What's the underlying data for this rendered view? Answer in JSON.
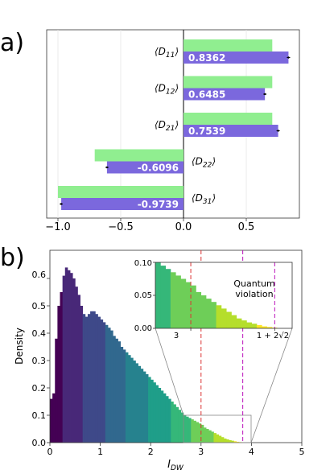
{
  "panel_a": {
    "label": "a)",
    "xticks": [
      "−1.0",
      "−0.5",
      "0.0",
      "0.5"
    ]
  },
  "panel_b": {
    "label": "b)",
    "xlabel": "I",
    "xlabel_sub": "DW",
    "ylabel": "Density",
    "xticks": [
      "0",
      "1",
      "2",
      "3",
      "4",
      "5"
    ],
    "yticks": [
      "0.0",
      "0.1",
      "0.2",
      "0.3",
      "0.4",
      "0.5",
      "0.6"
    ],
    "inset": {
      "yticks": [
        "0.00",
        "0.05",
        "0.10"
      ],
      "xtick_3": "3",
      "xtick_bound": "1 + 2√2",
      "annotation_line1": "Quantum",
      "annotation_line2": "violation"
    }
  },
  "colors": {
    "green": "#90ee90",
    "purple": "#7b68dd",
    "red_line": "#dd3333",
    "magenta_line": "#bb11bb"
  },
  "chart_data": [
    {
      "type": "bar",
      "orientation": "horizontal",
      "categories": [
        "⟨D11⟩",
        "⟨D12⟩",
        "⟨D21⟩",
        "⟨D22⟩",
        "⟨D31⟩"
      ],
      "series": [
        {
          "values": [
            0.7071,
            0.7071,
            0.7071,
            -0.7071,
            -1.0
          ]
        },
        {
          "values": [
            0.8362,
            0.6485,
            0.7539,
            -0.6096,
            -0.9739
          ]
        }
      ],
      "value_labels": [
        "0.8362",
        "0.6485",
        "0.7539",
        "-0.6096",
        "-0.9739"
      ],
      "xlim": [
        -1.1,
        0.92
      ]
    },
    {
      "type": "bar",
      "title": "",
      "xlabel": "I_DW",
      "ylabel": "Density",
      "xlim": [
        0,
        5
      ],
      "ylim": [
        0,
        0.65
      ],
      "vlines": [
        3.0,
        3.828
      ],
      "bins": [
        [
          0.0,
          0.16
        ],
        [
          0.05,
          0.18
        ],
        [
          0.1,
          0.38
        ],
        [
          0.15,
          0.5
        ],
        [
          0.2,
          0.55
        ],
        [
          0.25,
          0.61
        ],
        [
          0.3,
          0.64
        ],
        [
          0.35,
          0.63
        ],
        [
          0.4,
          0.62
        ],
        [
          0.45,
          0.6
        ],
        [
          0.5,
          0.57
        ],
        [
          0.55,
          0.54
        ],
        [
          0.6,
          0.5
        ],
        [
          0.65,
          0.47
        ],
        [
          0.7,
          0.46
        ],
        [
          0.75,
          0.47
        ],
        [
          0.8,
          0.48
        ],
        [
          0.85,
          0.48
        ],
        [
          0.9,
          0.47
        ],
        [
          0.95,
          0.46
        ],
        [
          1.0,
          0.45
        ],
        [
          1.05,
          0.44
        ],
        [
          1.1,
          0.43
        ],
        [
          1.15,
          0.42
        ],
        [
          1.2,
          0.41
        ],
        [
          1.25,
          0.39
        ],
        [
          1.3,
          0.38
        ],
        [
          1.35,
          0.37
        ],
        [
          1.4,
          0.35
        ],
        [
          1.45,
          0.34
        ],
        [
          1.5,
          0.33
        ],
        [
          1.55,
          0.32
        ],
        [
          1.6,
          0.31
        ],
        [
          1.65,
          0.3
        ],
        [
          1.7,
          0.29
        ],
        [
          1.75,
          0.28
        ],
        [
          1.8,
          0.27
        ],
        [
          1.85,
          0.26
        ],
        [
          1.9,
          0.25
        ],
        [
          1.95,
          0.24
        ],
        [
          2.0,
          0.23
        ],
        [
          2.05,
          0.22
        ],
        [
          2.1,
          0.21
        ],
        [
          2.15,
          0.2
        ],
        [
          2.2,
          0.19
        ],
        [
          2.25,
          0.18
        ],
        [
          2.3,
          0.17
        ],
        [
          2.35,
          0.16
        ],
        [
          2.4,
          0.15
        ],
        [
          2.45,
          0.14
        ],
        [
          2.5,
          0.13
        ],
        [
          2.55,
          0.12
        ],
        [
          2.6,
          0.11
        ],
        [
          2.65,
          0.1
        ],
        [
          2.7,
          0.095
        ],
        [
          2.75,
          0.09
        ],
        [
          2.8,
          0.085
        ],
        [
          2.85,
          0.08
        ],
        [
          2.9,
          0.075
        ],
        [
          2.95,
          0.07
        ],
        [
          3.0,
          0.065
        ],
        [
          3.05,
          0.055
        ],
        [
          3.1,
          0.05
        ],
        [
          3.15,
          0.045
        ],
        [
          3.2,
          0.04
        ],
        [
          3.25,
          0.035
        ],
        [
          3.3,
          0.03
        ],
        [
          3.35,
          0.025
        ],
        [
          3.4,
          0.02
        ],
        [
          3.45,
          0.015
        ],
        [
          3.5,
          0.012
        ],
        [
          3.55,
          0.009
        ],
        [
          3.6,
          0.007
        ],
        [
          3.65,
          0.005
        ],
        [
          3.7,
          0.003
        ],
        [
          3.75,
          0.002
        ],
        [
          3.8,
          0.001
        ]
      ],
      "inset": {
        "xlim": [
          2.65,
          4.0
        ],
        "ylim": [
          0,
          0.1
        ]
      }
    }
  ]
}
